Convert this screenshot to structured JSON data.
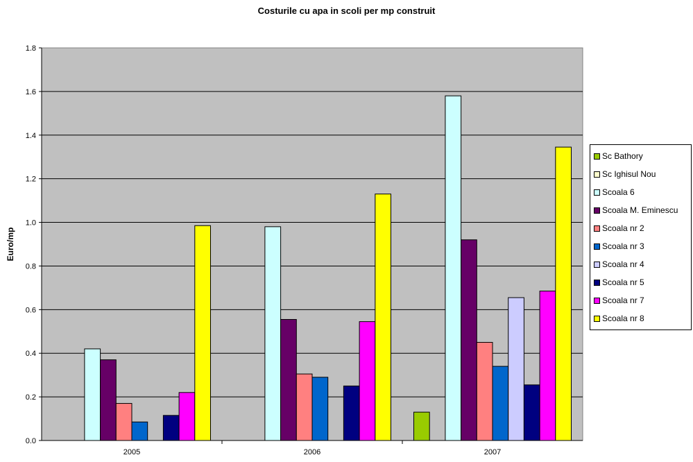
{
  "chart_data": {
    "type": "bar",
    "title": "Costurile cu apa in scoli per mp construit",
    "xlabel": "",
    "ylabel": "Euro/mp",
    "ylim": [
      0,
      1.8
    ],
    "ytick_step": 0.2,
    "ytick_labels": [
      "0.0",
      "0.2",
      "0.4",
      "0.6",
      "0.8",
      "1.0",
      "1.2",
      "1.4",
      "1.6",
      "1.8"
    ],
    "grid": true,
    "legend_position": "right",
    "categories": [
      "2005",
      "2006",
      "2007"
    ],
    "series": [
      {
        "name": "Sc Bathory",
        "color": "#99CC00",
        "values": [
          0,
          0,
          0.13
        ]
      },
      {
        "name": "Sc Ighisul Nou",
        "color": "#FFFFCC",
        "values": [
          0,
          0,
          0
        ]
      },
      {
        "name": "Scoala 6",
        "color": "#CCFFFF",
        "values": [
          0.42,
          0.98,
          1.58
        ]
      },
      {
        "name": "Scoala M. Eminescu",
        "color": "#660066",
        "values": [
          0.37,
          0.555,
          0.92
        ]
      },
      {
        "name": "Scoala nr 2",
        "color": "#FF8080",
        "values": [
          0.17,
          0.305,
          0.45
        ]
      },
      {
        "name": "Scoala nr 3",
        "color": "#0066CC",
        "values": [
          0.085,
          0.29,
          0.34
        ]
      },
      {
        "name": "Scoala nr 4",
        "color": "#CCCCFF",
        "values": [
          0,
          0,
          0.655
        ]
      },
      {
        "name": "Scoala nr 5",
        "color": "#000080",
        "values": [
          0.115,
          0.25,
          0.255
        ]
      },
      {
        "name": "Scoala nr 7",
        "color": "#FF00FF",
        "values": [
          0.22,
          0.545,
          0.685
        ]
      },
      {
        "name": "Scoala nr 8",
        "color": "#FFFF00",
        "values": [
          0.985,
          1.13,
          1.345
        ]
      }
    ]
  }
}
